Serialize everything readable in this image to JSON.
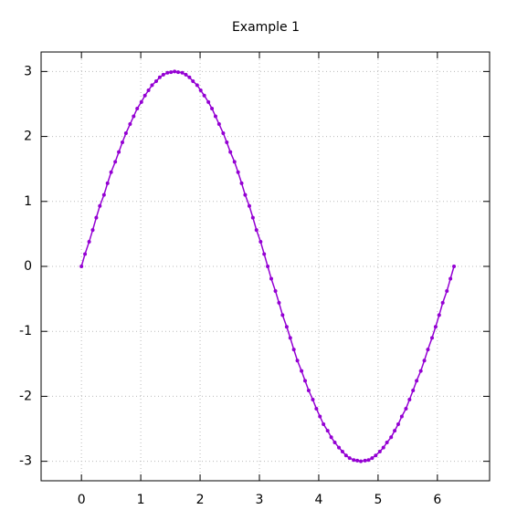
{
  "chart_data": {
    "type": "line",
    "title": "Example 1",
    "x": [
      0,
      0.06,
      0.13,
      0.19,
      0.25,
      0.31,
      0.38,
      0.44,
      0.5,
      0.57,
      0.63,
      0.69,
      0.75,
      0.82,
      0.88,
      0.94,
      1.01,
      1.07,
      1.13,
      1.19,
      1.26,
      1.32,
      1.38,
      1.45,
      1.51,
      1.57,
      1.63,
      1.7,
      1.76,
      1.82,
      1.88,
      1.95,
      2.01,
      2.07,
      2.14,
      2.2,
      2.26,
      2.32,
      2.39,
      2.45,
      2.51,
      2.58,
      2.64,
      2.7,
      2.76,
      2.83,
      2.89,
      2.95,
      3.02,
      3.08,
      3.14,
      3.2,
      3.27,
      3.33,
      3.39,
      3.46,
      3.52,
      3.58,
      3.64,
      3.71,
      3.77,
      3.83,
      3.9,
      3.96,
      4.02,
      4.08,
      4.15,
      4.21,
      4.27,
      4.34,
      4.4,
      4.46,
      4.52,
      4.59,
      4.65,
      4.71,
      4.78,
      4.84,
      4.9,
      4.96,
      5.03,
      5.09,
      5.15,
      5.22,
      5.28,
      5.34,
      5.4,
      5.47,
      5.53,
      5.59,
      5.65,
      5.72,
      5.78,
      5.84,
      5.91,
      5.97,
      6.03,
      6.09,
      6.16,
      6.22,
      6.28
    ],
    "series": [
      {
        "color": "#9400d3",
        "values": [
          0,
          0.19,
          0.38,
          0.56,
          0.75,
          0.93,
          1.1,
          1.28,
          1.45,
          1.61,
          1.76,
          1.91,
          2.05,
          2.19,
          2.31,
          2.43,
          2.53,
          2.63,
          2.71,
          2.79,
          2.85,
          2.91,
          2.95,
          2.98,
          2.99,
          3,
          2.99,
          2.98,
          2.95,
          2.91,
          2.85,
          2.79,
          2.71,
          2.63,
          2.53,
          2.43,
          2.31,
          2.19,
          2.05,
          1.91,
          1.76,
          1.61,
          1.45,
          1.28,
          1.1,
          0.93,
          0.75,
          0.56,
          0.38,
          0.19,
          0,
          -0.19,
          -0.38,
          -0.56,
          -0.75,
          -0.93,
          -1.1,
          -1.28,
          -1.45,
          -1.61,
          -1.76,
          -1.91,
          -2.05,
          -2.19,
          -2.31,
          -2.43,
          -2.53,
          -2.63,
          -2.71,
          -2.79,
          -2.85,
          -2.91,
          -2.95,
          -2.98,
          -2.99,
          -3,
          -2.99,
          -2.98,
          -2.95,
          -2.91,
          -2.85,
          -2.79,
          -2.71,
          -2.63,
          -2.53,
          -2.43,
          -2.31,
          -2.19,
          -2.05,
          -1.91,
          -1.76,
          -1.61,
          -1.45,
          -1.28,
          -1.1,
          -0.93,
          -0.75,
          -0.56,
          -0.38,
          -0.19,
          0
        ]
      }
    ],
    "xlim": [
      -0.68,
      6.88
    ],
    "ylim": [
      -3.3,
      3.3
    ],
    "xticks": [
      0,
      1,
      2,
      3,
      4,
      5,
      6
    ],
    "yticks": [
      -3,
      -2,
      -1,
      0,
      1,
      2,
      3
    ],
    "grid": true
  }
}
